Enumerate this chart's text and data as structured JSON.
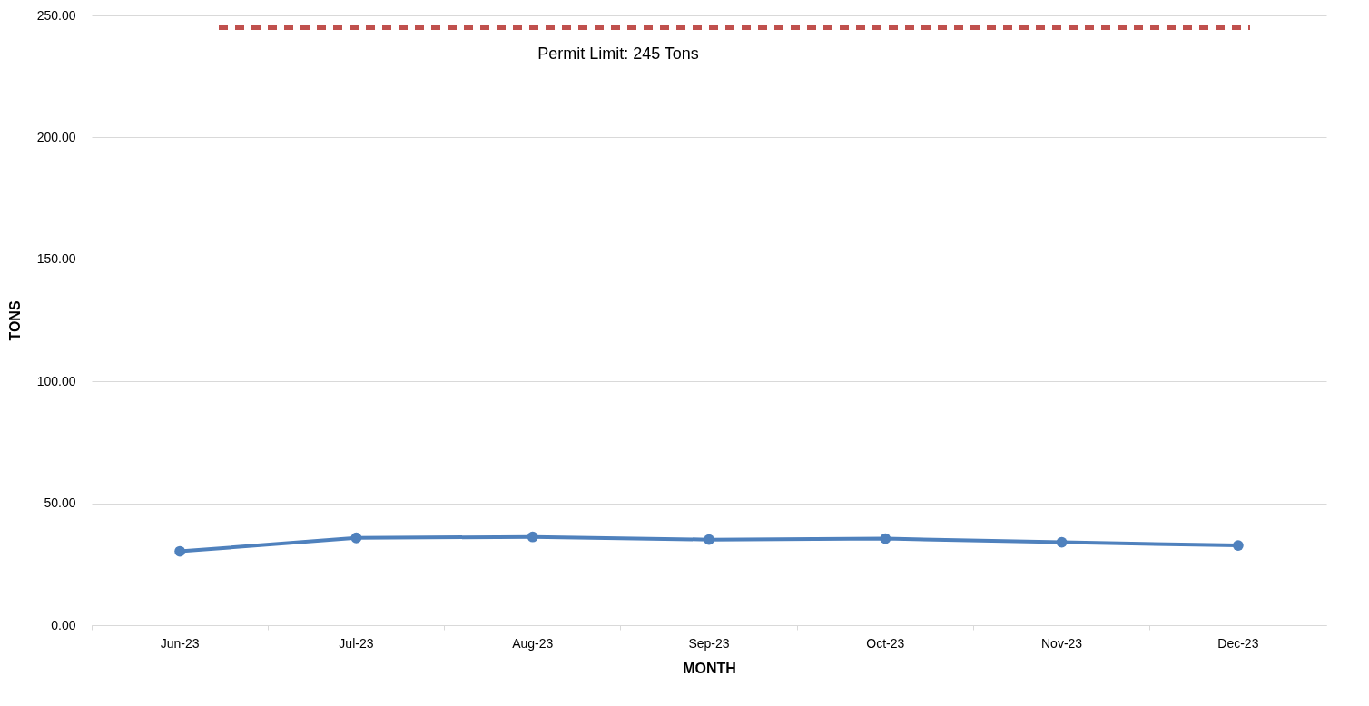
{
  "chart_data": {
    "type": "line",
    "xlabel": "MONTH",
    "ylabel": "TONS",
    "categories": [
      "Jun-23",
      "Jul-23",
      "Aug-23",
      "Sep-23",
      "Oct-23",
      "Nov-23",
      "Dec-23"
    ],
    "series": [
      {
        "color": "#4f81bd",
        "values": [
          30.3,
          35.8,
          36.2,
          35.1,
          35.5,
          34.0,
          32.7
        ]
      }
    ],
    "ylim": [
      0,
      250
    ],
    "yticks": [
      {
        "value": 0,
        "label": "0.00"
      },
      {
        "value": 50,
        "label": "50.00"
      },
      {
        "value": 100,
        "label": "100.00"
      },
      {
        "value": 150,
        "label": "150.00"
      },
      {
        "value": 200,
        "label": "200.00"
      },
      {
        "value": 250,
        "label": "250.00"
      }
    ],
    "ref_lines": [
      {
        "axis": "y",
        "value": 245,
        "label": "Permit Limit: 245 Tons",
        "color": "#c0504d",
        "line_style": "dashed"
      }
    ],
    "grid": "y",
    "marker": "circle",
    "line_style": "solid"
  }
}
